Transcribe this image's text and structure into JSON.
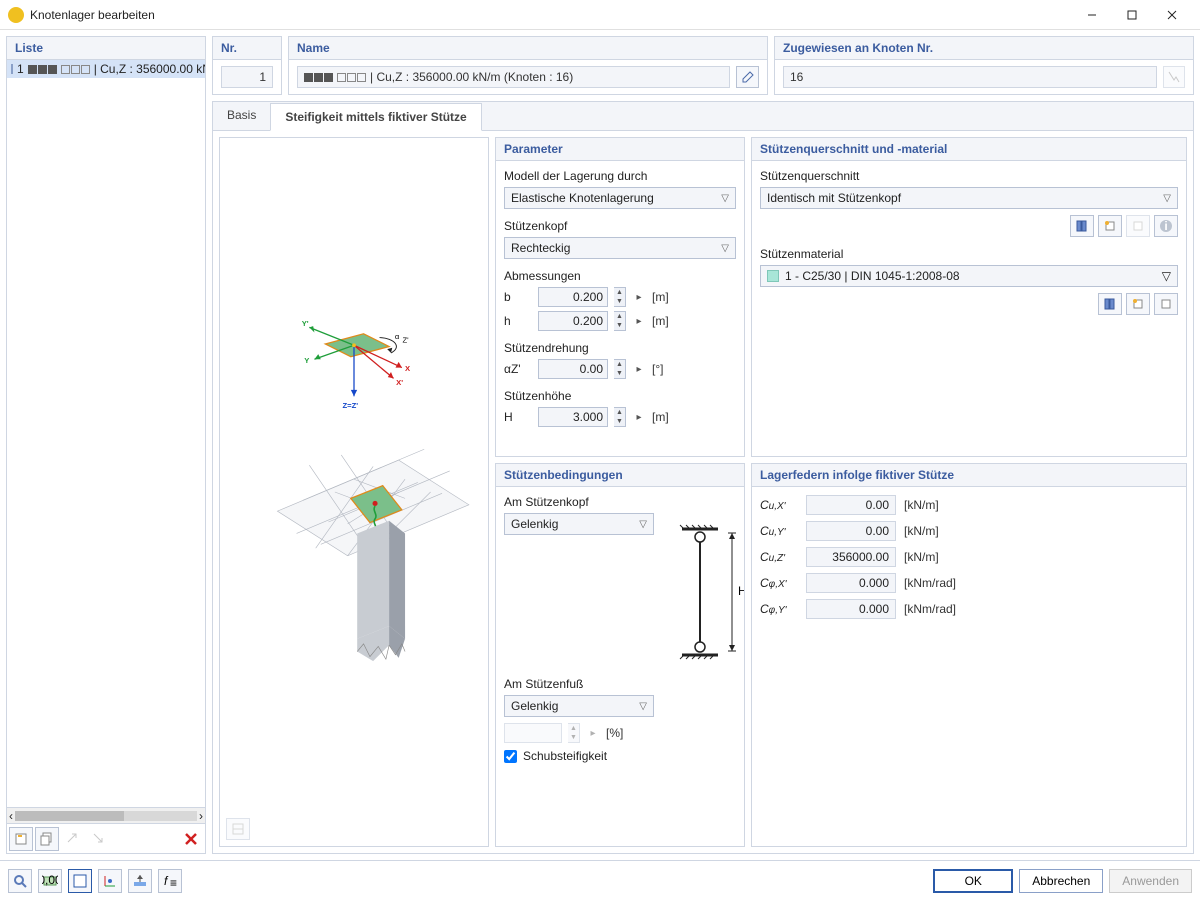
{
  "window": {
    "title": "Knotenlager bearbeiten"
  },
  "list": {
    "header": "Liste",
    "item_no": "1",
    "item_text": " | Cu,Z : 356000.00 kN"
  },
  "toprow": {
    "nr_label": "Nr.",
    "nr_value": "1",
    "name_label": "Name",
    "name_value": " | Cu,Z : 356000.00 kN/m (Knoten : 16)",
    "assign_label": "Zugewiesen an Knoten Nr.",
    "assign_value": "16"
  },
  "tabs": {
    "t1": "Basis",
    "t2": "Steifigkeit mittels fiktiver Stütze"
  },
  "parameter": {
    "header": "Parameter",
    "model_label": "Modell der Lagerung durch",
    "model_value": "Elastische Knotenlagerung",
    "head_label": "Stützenkopf",
    "head_value": "Rechteckig",
    "dim_label": "Abmessungen",
    "b_sym": "b",
    "b_val": "0.200",
    "b_unit": "[m]",
    "h_sym": "h",
    "h_val": "0.200",
    "h_unit": "[m]",
    "rot_label": "Stützendrehung",
    "rot_sym": "αZ'",
    "rot_val": "0.00",
    "rot_unit": "[°]",
    "height_label": "Stützenhöhe",
    "H_sym": "H",
    "H_val": "3.000",
    "H_unit": "[m]"
  },
  "cond": {
    "header": "Stützenbedingungen",
    "top_label": "Am Stützenkopf",
    "top_value": "Gelenkig",
    "bot_label": "Am Stützenfuß",
    "bot_value": "Gelenkig",
    "pct_unit": "[%]",
    "shear_label": "Schubsteifigkeit"
  },
  "section": {
    "header": "Stützenquerschnitt und -material",
    "cs_label": "Stützenquerschnitt",
    "cs_value": "Identisch mit Stützenkopf",
    "mat_label": "Stützenmaterial",
    "mat_value": "1 - C25/30 | DIN 1045-1:2008-08"
  },
  "springs": {
    "header": "Lagerfedern infolge fiktiver Stütze",
    "rows": [
      {
        "label": "Cu,X'",
        "value": "0.00",
        "unit": "[kN/m]"
      },
      {
        "label": "Cu,Y'",
        "value": "0.00",
        "unit": "[kN/m]"
      },
      {
        "label": "Cu,Z'",
        "value": "356000.00",
        "unit": "[kN/m]"
      },
      {
        "label": "Cφ,X'",
        "value": "0.000",
        "unit": "[kNm/rad]"
      },
      {
        "label": "Cφ,Y'",
        "value": "0.000",
        "unit": "[kNm/rad]"
      }
    ]
  },
  "viz": {
    "axes": {
      "Y": "Y",
      "Yp": "Y'",
      "X": "X",
      "Xp": "X'",
      "Z": "Z=Z'",
      "alpha": "αZ'"
    },
    "colors": {
      "green": "#1f9e3a",
      "red": "#d01f1f",
      "blue": "#1548c9",
      "face_fill": "#7bbf8a",
      "face_stroke": "#e08a1a",
      "mesh_fill": "#f5f6f8",
      "mesh_stroke": "#b4b9c2",
      "col_light": "#c8ccd2",
      "col_dark": "#9aa0aa"
    }
  },
  "footer": {
    "ok": "OK",
    "cancel": "Abbrechen",
    "apply": "Anwenden"
  }
}
